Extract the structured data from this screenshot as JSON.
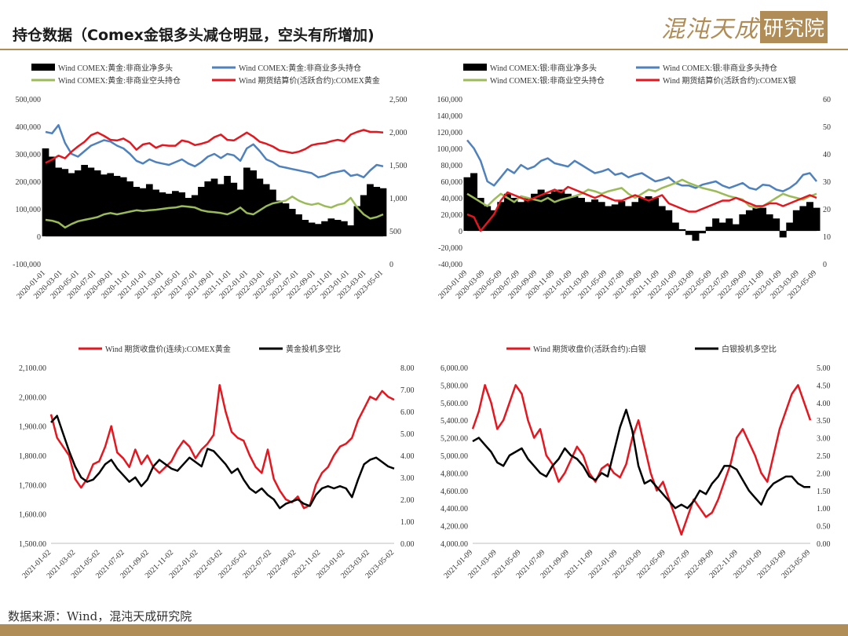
{
  "header": {
    "title": "持仓数据（Comex金银多头减仓明显，空头有所增加)"
  },
  "logo": {
    "text_left": "混沌天成",
    "text_right": "研究院"
  },
  "footer": {
    "source": "数据来源：Wind，混沌天成研究院"
  },
  "colors": {
    "black": "#000000",
    "blue": "#4f81bd",
    "green": "#9bbb59",
    "red": "#e3171f",
    "gold": "#b08d57"
  },
  "chart_data": [
    {
      "type": "bar",
      "legend": [
        {
          "name": "Wind COMEX:黄金:非商业净多头",
          "style": "bar",
          "color": "#000000"
        },
        {
          "name": "Wind COMEX:黄金:非商业多头持仓",
          "style": "line",
          "color": "#4f81bd"
        },
        {
          "name": "Wind COMEX:黄金:非商业空头持仓",
          "style": "line",
          "color": "#9bbb59"
        },
        {
          "name": "Wind 期货结算价(活跃合约):COMEX黄金",
          "style": "line",
          "color": "#e3171f"
        }
      ],
      "x_ticks": [
        "2020-01-01",
        "2020-03-01",
        "2020-05-01",
        "2020-07-01",
        "2020-09-01",
        "2020-11-01",
        "2021-01-01",
        "2021-03-01",
        "2021-05-01",
        "2021-07-01",
        "2021-09-01",
        "2021-11-01",
        "2022-01-01",
        "2022-03-01",
        "2022-05-01",
        "2022-07-01",
        "2022-09-01",
        "2022-11-01",
        "2023-01-01",
        "2023-03-01",
        "2023-05-01"
      ],
      "ylim_left": [
        -100000,
        500000
      ],
      "yticks_left": [
        "-100,000",
        "0",
        "100,000",
        "200,000",
        "300,000",
        "400,000",
        "500,000"
      ],
      "ylim_right": [
        0,
        2500
      ],
      "yticks_right": [
        "0",
        "500",
        "1,000",
        "1,500",
        "2,000",
        "2,500"
      ],
      "series": [
        {
          "name": "Wind COMEX:黄金:非商业净多头",
          "axis": "left",
          "color": "#000000",
          "values": [
            320000,
            290000,
            250000,
            245000,
            230000,
            240000,
            260000,
            250000,
            240000,
            225000,
            230000,
            220000,
            215000,
            200000,
            180000,
            175000,
            190000,
            170000,
            160000,
            155000,
            165000,
            160000,
            140000,
            150000,
            180000,
            200000,
            210000,
            190000,
            220000,
            195000,
            170000,
            250000,
            240000,
            210000,
            190000,
            170000,
            130000,
            120000,
            100000,
            80000,
            60000,
            50000,
            45000,
            55000,
            65000,
            60000,
            55000,
            40000,
            110000,
            150000,
            190000,
            180000,
            175000
          ]
        },
        {
          "name": "Wind COMEX:黄金:非商业多头持仓",
          "axis": "left",
          "color": "#4f81bd",
          "values": [
            380000,
            375000,
            405000,
            340000,
            300000,
            290000,
            310000,
            330000,
            340000,
            350000,
            345000,
            330000,
            320000,
            300000,
            275000,
            265000,
            280000,
            270000,
            265000,
            260000,
            270000,
            280000,
            265000,
            255000,
            270000,
            290000,
            300000,
            285000,
            300000,
            295000,
            275000,
            320000,
            335000,
            310000,
            280000,
            270000,
            255000,
            250000,
            245000,
            240000,
            235000,
            230000,
            215000,
            220000,
            230000,
            235000,
            240000,
            220000,
            225000,
            215000,
            240000,
            260000,
            255000
          ]
        },
        {
          "name": "Wind COMEX:黄金:非商业空头持仓",
          "axis": "left",
          "color": "#9bbb59",
          "values": [
            60000,
            57000,
            50000,
            32000,
            45000,
            55000,
            60000,
            65000,
            70000,
            80000,
            85000,
            80000,
            85000,
            90000,
            95000,
            92000,
            95000,
            97000,
            100000,
            103000,
            105000,
            110000,
            108000,
            105000,
            95000,
            90000,
            88000,
            85000,
            80000,
            90000,
            105000,
            85000,
            80000,
            95000,
            110000,
            120000,
            125000,
            130000,
            145000,
            130000,
            120000,
            115000,
            120000,
            110000,
            105000,
            115000,
            120000,
            140000,
            105000,
            80000,
            65000,
            70000,
            80000
          ]
        },
        {
          "name": "Wind 期货结算价(活跃合约):COMEX黄金",
          "axis": "right",
          "color": "#e3171f",
          "values": [
            1530,
            1580,
            1640,
            1600,
            1700,
            1780,
            1850,
            1950,
            1990,
            1940,
            1880,
            1870,
            1900,
            1840,
            1730,
            1810,
            1830,
            1760,
            1800,
            1790,
            1790,
            1870,
            1850,
            1800,
            1820,
            1850,
            1920,
            1960,
            1880,
            1870,
            1930,
            1990,
            1930,
            1850,
            1820,
            1780,
            1720,
            1700,
            1680,
            1700,
            1740,
            1800,
            1820,
            1830,
            1860,
            1880,
            1860,
            1960,
            2000,
            2030,
            2000,
            2000,
            1990
          ]
        }
      ]
    },
    {
      "type": "bar",
      "legend": [
        {
          "name": "Wind COMEX:银:非商业净多头",
          "style": "bar",
          "color": "#000000"
        },
        {
          "name": "Wind COMEX:银:非商业多头持仓",
          "style": "line",
          "color": "#4f81bd"
        },
        {
          "name": "Wind COMEX:银:非商业空头持仓",
          "style": "line",
          "color": "#9bbb59"
        },
        {
          "name": "Wind 期货结算价(活跃合约):COMEX银",
          "style": "line",
          "color": "#e3171f"
        }
      ],
      "x_ticks": [
        "2020-01-09",
        "2020-03-09",
        "2020-05-09",
        "2020-07-09",
        "2020-09-09",
        "2020-11-09",
        "2021-01-09",
        "2021-03-09",
        "2021-05-09",
        "2021-07-09",
        "2021-09-09",
        "2021-11-09",
        "2022-01-09",
        "2022-03-09",
        "2022-05-09",
        "2022-07-09",
        "2022-09-09",
        "2022-11-09",
        "2023-01-09",
        "2023-03-09",
        "2023-05-09"
      ],
      "ylim_left": [
        -40000,
        160000
      ],
      "yticks_left": [
        "-40,000",
        "-20,000",
        "0",
        "20,000",
        "40,000",
        "60,000",
        "80,000",
        "100,000",
        "120,000",
        "140,000",
        "160,000"
      ],
      "ylim_right": [
        0,
        60
      ],
      "yticks_right": [
        "0",
        "10",
        "20",
        "30",
        "40",
        "50",
        "60"
      ],
      "series": [
        {
          "name": "Wind COMEX:银:非商业净多头",
          "axis": "left",
          "color": "#000000",
          "values": [
            65000,
            70000,
            40000,
            30000,
            25000,
            35000,
            45000,
            40000,
            35000,
            40000,
            45000,
            50000,
            45000,
            48000,
            50000,
            45000,
            42000,
            40000,
            35000,
            38000,
            35000,
            30000,
            32000,
            36000,
            30000,
            35000,
            40000,
            42000,
            40000,
            30000,
            25000,
            10000,
            2000,
            -5000,
            -12000,
            -3000,
            5000,
            15000,
            10000,
            15000,
            8000,
            20000,
            25000,
            30000,
            28000,
            20000,
            15000,
            -8000,
            10000,
            25000,
            30000,
            35000,
            28000
          ]
        },
        {
          "name": "Wind COMEX:银:非商业多头持仓",
          "axis": "left",
          "color": "#4f81bd",
          "values": [
            110000,
            100000,
            85000,
            60000,
            55000,
            65000,
            75000,
            70000,
            80000,
            75000,
            78000,
            85000,
            88000,
            82000,
            80000,
            78000,
            85000,
            80000,
            75000,
            70000,
            72000,
            75000,
            68000,
            70000,
            65000,
            68000,
            70000,
            65000,
            60000,
            62000,
            65000,
            58000,
            55000,
            55000,
            52000,
            56000,
            58000,
            60000,
            55000,
            52000,
            55000,
            58000,
            52000,
            50000,
            56000,
            55000,
            50000,
            48000,
            52000,
            58000,
            68000,
            70000,
            60000
          ]
        },
        {
          "name": "Wind COMEX:银:非商业空头持仓",
          "axis": "left",
          "color": "#9bbb59",
          "values": [
            45000,
            40000,
            35000,
            30000,
            38000,
            45000,
            40000,
            35000,
            42000,
            40000,
            38000,
            36000,
            40000,
            35000,
            38000,
            40000,
            42000,
            45000,
            50000,
            48000,
            45000,
            48000,
            50000,
            52000,
            45000,
            40000,
            45000,
            50000,
            48000,
            52000,
            55000,
            58000,
            62000,
            58000,
            55000,
            52000,
            50000,
            48000,
            45000,
            42000,
            40000,
            38000,
            30000,
            28000,
            30000,
            35000,
            40000,
            45000,
            42000,
            40000,
            38000,
            42000,
            45000
          ]
        },
        {
          "name": "Wind 期货结算价(活跃合约):COMEX银",
          "axis": "right",
          "color": "#e3171f",
          "values": [
            18,
            17,
            12,
            15,
            18,
            23,
            26,
            25,
            24,
            23,
            24,
            25,
            26,
            27,
            26,
            28,
            27,
            26,
            25,
            24,
            25,
            24,
            23,
            23,
            24,
            25,
            24,
            23,
            24,
            25,
            22,
            21,
            20,
            19,
            19,
            20,
            21,
            22,
            23,
            23,
            24,
            23,
            22,
            21,
            21,
            22,
            22,
            21,
            22,
            23,
            24,
            25,
            24
          ]
        }
      ]
    },
    {
      "type": "line",
      "legend": [
        {
          "name": "Wind 期货收盘价(连续):COMEX黄金",
          "color": "#e3171f"
        },
        {
          "name": "黄金投机多空比",
          "color": "#000000"
        }
      ],
      "x_ticks": [
        "2021-01-02",
        "2021-03-02",
        "2021-05-02",
        "2021-07-02",
        "2021-09-02",
        "2021-11-02",
        "2022-01-02",
        "2022-03-02",
        "2022-05-02",
        "2022-07-02",
        "2022-09-02",
        "2022-11-02",
        "2023-01-02",
        "2023-03-02",
        "2023-05-02"
      ],
      "ylim_left": [
        1500,
        2100
      ],
      "yticks_left": [
        "1,500.00",
        "1,600.00",
        "1,700.00",
        "1,800.00",
        "1,900.00",
        "2,000.00",
        "2,100.00"
      ],
      "ylim_right": [
        0,
        8
      ],
      "yticks_right": [
        "0.00",
        "1.00",
        "2.00",
        "3.00",
        "4.00",
        "5.00",
        "6.00",
        "7.00",
        "8.00"
      ],
      "series": [
        {
          "name": "Wind 期货收盘价(连续):COMEX黄金",
          "axis": "left",
          "color": "#e3171f",
          "values": [
            1940,
            1860,
            1830,
            1800,
            1720,
            1690,
            1720,
            1770,
            1780,
            1830,
            1900,
            1810,
            1790,
            1760,
            1820,
            1770,
            1800,
            1760,
            1740,
            1760,
            1780,
            1820,
            1850,
            1830,
            1790,
            1820,
            1840,
            1870,
            2040,
            1950,
            1880,
            1860,
            1850,
            1800,
            1760,
            1740,
            1820,
            1720,
            1680,
            1650,
            1640,
            1660,
            1620,
            1630,
            1700,
            1740,
            1760,
            1800,
            1830,
            1840,
            1860,
            1920,
            1960,
            2000,
            1990,
            2020,
            2000,
            1990
          ]
        },
        {
          "name": "黄金投机多空比",
          "axis": "right",
          "color": "#000000",
          "values": [
            5.5,
            5.8,
            5.0,
            4.2,
            3.5,
            3.0,
            2.8,
            2.9,
            3.2,
            3.6,
            3.8,
            3.4,
            3.1,
            2.8,
            3.0,
            2.6,
            2.9,
            3.5,
            3.8,
            3.6,
            3.4,
            3.3,
            3.6,
            3.9,
            3.7,
            3.5,
            4.3,
            4.2,
            3.9,
            3.6,
            3.2,
            3.4,
            2.9,
            2.5,
            2.3,
            2.5,
            2.2,
            2.0,
            1.6,
            1.8,
            1.9,
            2.0,
            1.8,
            1.7,
            2.2,
            2.5,
            2.6,
            2.5,
            2.6,
            2.5,
            2.1,
            2.9,
            3.6,
            3.8,
            3.9,
            3.7,
            3.5,
            3.4
          ]
        }
      ]
    },
    {
      "type": "line",
      "legend": [
        {
          "name": "Wind 期货收盘价(活跃合约):白银",
          "color": "#e3171f"
        },
        {
          "name": "白银投机多空比",
          "color": "#000000"
        }
      ],
      "x_ticks": [
        "2021-01-09",
        "2021-03-09",
        "2021-05-09",
        "2021-07-09",
        "2021-09-09",
        "2021-11-09",
        "2022-01-09",
        "2022-03-09",
        "2022-05-09",
        "2022-07-09",
        "2022-09-09",
        "2022-11-09",
        "2023-01-09",
        "2023-03-09",
        "2023-05-09"
      ],
      "ylim_left": [
        4000,
        6000
      ],
      "yticks_left": [
        "4,000.00",
        "4,200.00",
        "4,400.00",
        "4,600.00",
        "4,800.00",
        "5,000.00",
        "5,200.00",
        "5,400.00",
        "5,600.00",
        "5,800.00",
        "6,000.00"
      ],
      "ylim_right": [
        0,
        5
      ],
      "yticks_right": [
        "0.00",
        "0.50",
        "1.00",
        "1.50",
        "2.00",
        "2.50",
        "3.00",
        "3.50",
        "4.00",
        "4.50",
        "5.00"
      ],
      "series": [
        {
          "name": "Wind 期货收盘价(活跃合约):白银",
          "axis": "left",
          "color": "#e3171f",
          "values": [
            5300,
            5500,
            5800,
            5600,
            5300,
            5400,
            5600,
            5800,
            5700,
            5400,
            5200,
            5300,
            5000,
            4900,
            4700,
            4800,
            4950,
            5100,
            5000,
            4800,
            4700,
            4850,
            4900,
            4800,
            4750,
            4900,
            5200,
            5400,
            5100,
            4800,
            4600,
            4700,
            4500,
            4300,
            4100,
            4300,
            4500,
            4400,
            4300,
            4350,
            4500,
            4700,
            4900,
            5200,
            5300,
            5150,
            5000,
            4800,
            4700,
            5000,
            5300,
            5500,
            5700,
            5800,
            5600,
            5400
          ]
        },
        {
          "name": "白银投机多空比",
          "axis": "right",
          "color": "#000000",
          "values": [
            2.9,
            3.0,
            2.8,
            2.6,
            2.3,
            2.2,
            2.5,
            2.6,
            2.7,
            2.4,
            2.2,
            2.0,
            1.9,
            2.2,
            2.4,
            2.7,
            2.5,
            2.4,
            2.2,
            1.9,
            1.8,
            2.0,
            1.9,
            2.6,
            3.3,
            3.8,
            3.2,
            2.2,
            1.7,
            1.8,
            1.6,
            1.4,
            1.2,
            1.0,
            1.1,
            1.0,
            1.2,
            1.5,
            1.4,
            1.7,
            1.9,
            2.2,
            2.2,
            2.1,
            1.8,
            1.5,
            1.3,
            1.1,
            1.5,
            1.7,
            1.8,
            1.9,
            1.9,
            1.7,
            1.6,
            1.6
          ]
        }
      ]
    }
  ]
}
